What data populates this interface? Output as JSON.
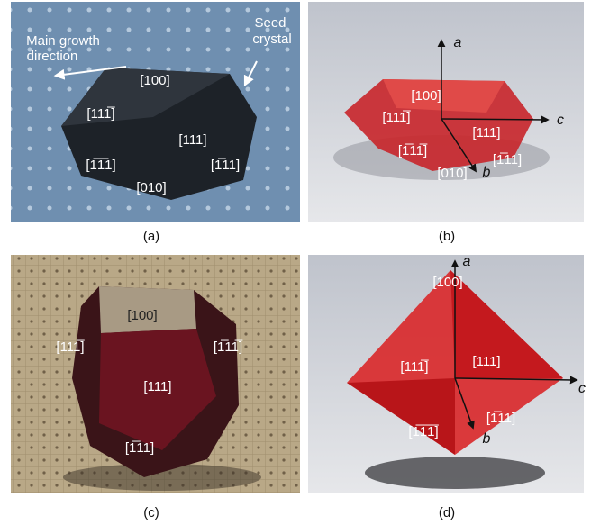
{
  "panels": [
    {
      "caption": "(a)",
      "annotations": [
        "Main growth",
        "direction",
        "Seed",
        "crystal"
      ],
      "labels": [
        "[100]",
        "[111̅]",
        "[111]",
        "[1̅1̅1]",
        "[1̅11]",
        "[010]"
      ]
    },
    {
      "caption": "(b)",
      "axes": [
        "a",
        "b",
        "c"
      ],
      "labels": [
        "[100]",
        "[111̅]",
        "[111]",
        "[1̅11̅]",
        "[1̅11]",
        "[010]"
      ]
    },
    {
      "caption": "(c)",
      "labels": [
        "[100]",
        "[111̅]",
        "[1̅11̅]",
        "[111]",
        "[1̅11]"
      ]
    },
    {
      "caption": "(d)",
      "axes": [
        "a",
        "b",
        "c"
      ],
      "labels": [
        "[100]",
        "[111̅]",
        "[111]",
        "[1̅11]",
        "[1̅1̅1̅]"
      ]
    }
  ]
}
